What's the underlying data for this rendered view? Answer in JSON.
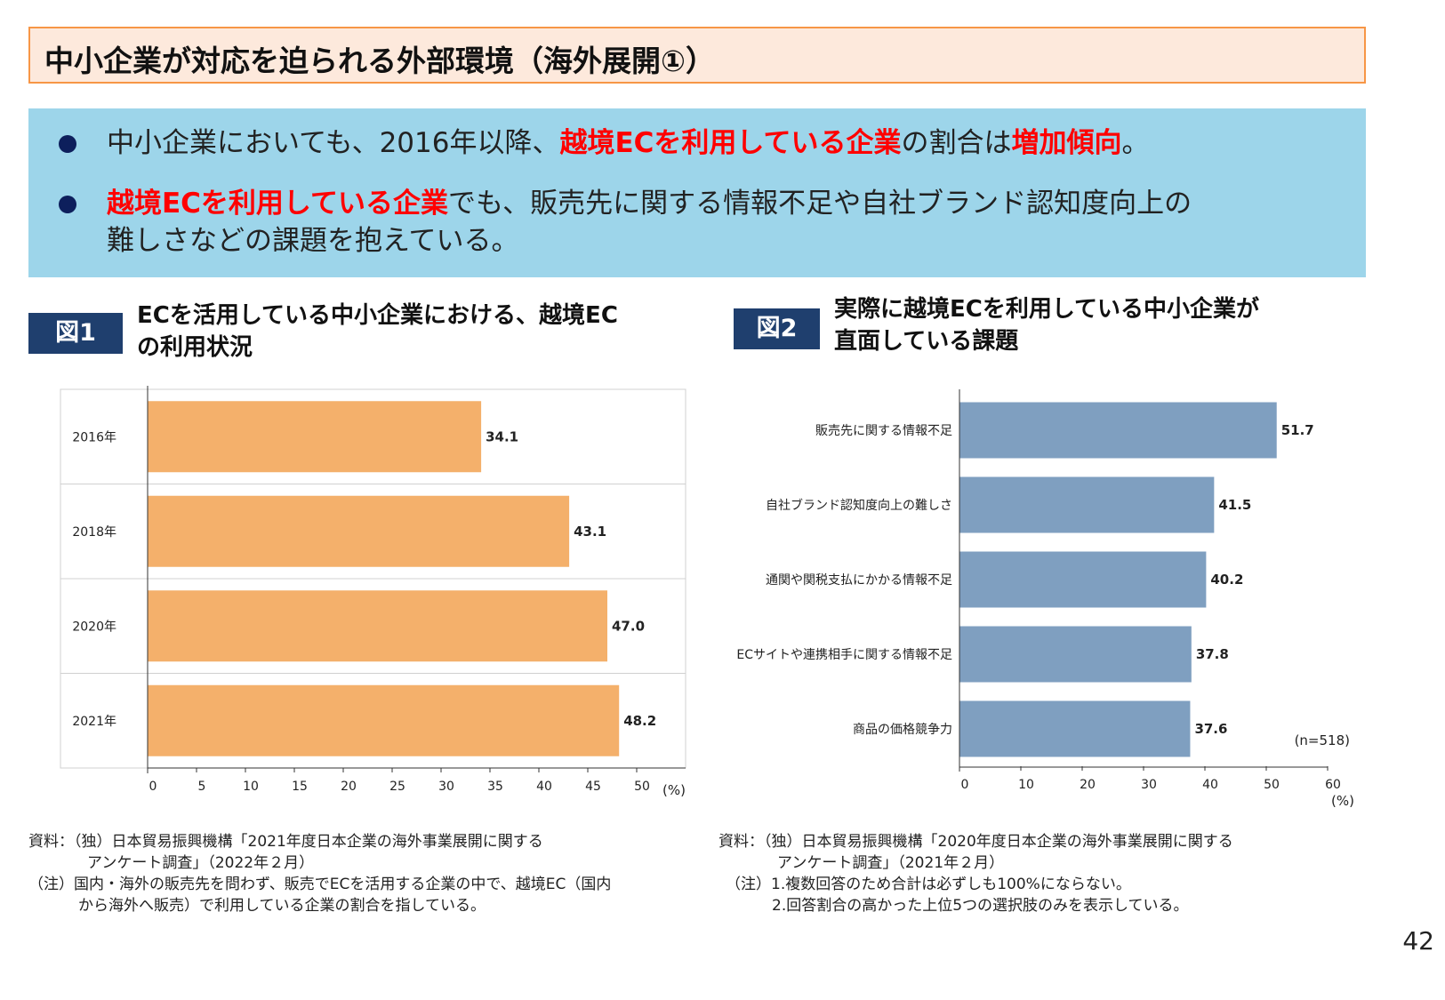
{
  "title": "中小企業が対応を迫られる外部環境（海外展開①）",
  "summary": {
    "bullet1": {
      "pre": "中小企業においても、2016年以降、",
      "em1": "越境ECを利用している企業",
      "mid": "の割合は",
      "em2": "増加傾向",
      "post": "。"
    },
    "bullet2": {
      "em1": "越境ECを利用している企業",
      "line1": "でも、販売先に関する情報不足や自社ブランド認知度向上の",
      "line2": "難しさなどの課題を抱えている。"
    }
  },
  "figure1": {
    "tag": "図1",
    "title_line1": "ECを活用している中小企業における、越境EC",
    "title_line2": "の利用状況",
    "source_line1": "資料：（独）日本貿易振興機構「2021年度日本企業の海外事業展開に関する",
    "source_line2": "アンケート調査」（2022年２月）",
    "note_line1": "（注）国内・海外の販売先を問わず、販売でECを活用する企業の中で、越境EC（国内",
    "note_line2": "から海外へ販売）で利用している企業の割合を指している。"
  },
  "figure2": {
    "tag": "図2",
    "title_line1": "実際に越境ECを利用している中小企業が",
    "title_line2": "直面している課題",
    "source_line1": "資料：（独）日本貿易振興機構「2020年度日本企業の海外事業展開に関する",
    "source_line2": "アンケート調査」（2021年２月）",
    "note_line1": "（注）1.複数回答のため合計は必ずしも100%にならない。",
    "note_line2": "2.回答割合の高かった上位5つの選択肢のみを表示している。"
  },
  "page_number": "42",
  "chart_data": [
    {
      "type": "bar",
      "orientation": "horizontal",
      "categories": [
        "2016年",
        "2018年",
        "2020年",
        "2021年"
      ],
      "values": [
        34.1,
        43.1,
        47.0,
        48.2
      ],
      "labels": [
        "34.1",
        "43.1",
        "47.0",
        "48.2"
      ],
      "xlim": [
        0,
        55
      ],
      "xticks": [
        0,
        5,
        10,
        15,
        20,
        25,
        30,
        35,
        40,
        45,
        50
      ],
      "xunit": "(%)",
      "grid": "horizontal separators",
      "color": "#f4b06b"
    },
    {
      "type": "bar",
      "orientation": "horizontal",
      "categories": [
        "販売先に関する情報不足",
        "自社ブランド認知度向上の難しさ",
        "通関や関税支払にかかる情報不足",
        "ECサイトや連携相手に関する情報不足",
        "商品の価格競争力"
      ],
      "values": [
        51.7,
        41.5,
        40.2,
        37.8,
        37.6
      ],
      "labels": [
        "51.7",
        "41.5",
        "40.2",
        "37.8",
        "37.6"
      ],
      "xlim": [
        0,
        60
      ],
      "xticks": [
        0,
        10,
        20,
        30,
        40,
        50,
        60
      ],
      "xunit": "(%)",
      "annotation": "(n=518)",
      "grid": false,
      "color": "#7f9fc0"
    }
  ]
}
